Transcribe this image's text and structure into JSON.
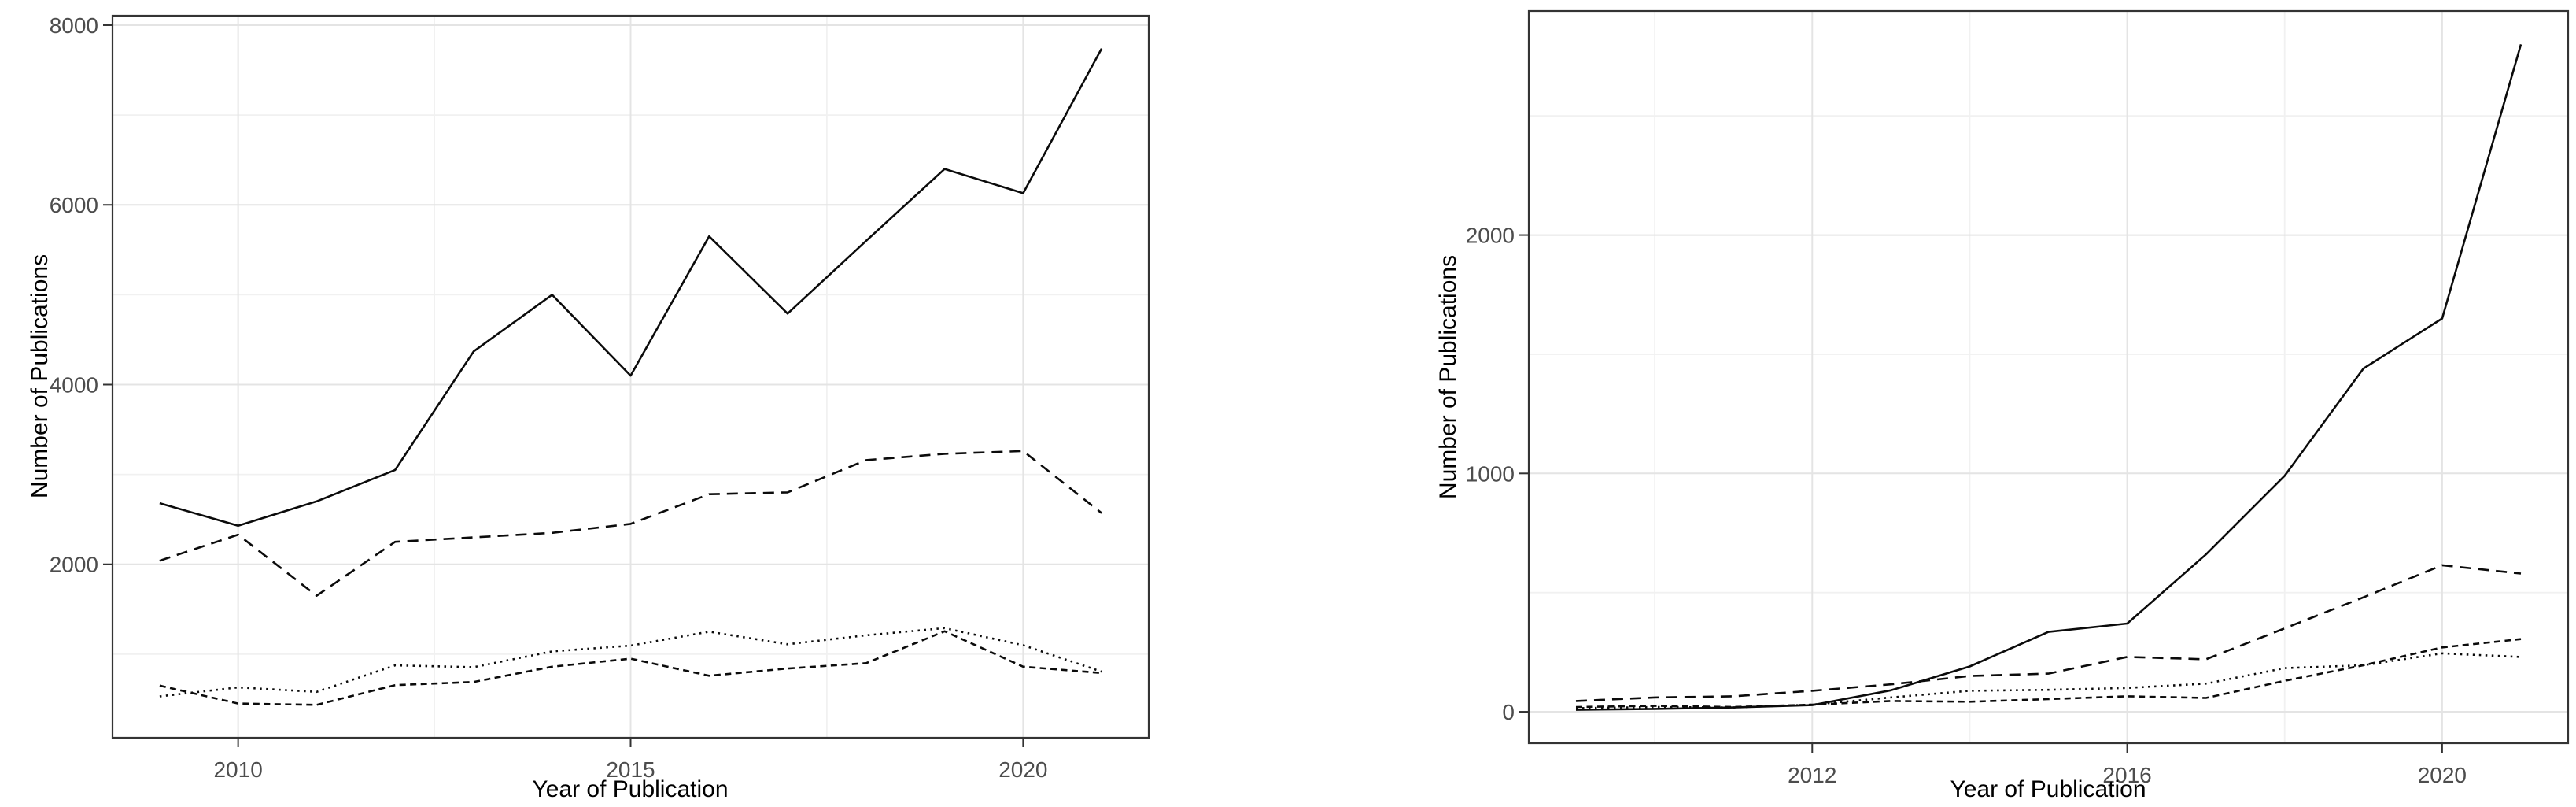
{
  "page": {
    "background": "#ffffff",
    "text_color": "#000000",
    "tick_label_color": "#4d4d4d",
    "line_color": "#0b0b0b",
    "grid_major_color": "#e4e4e4",
    "grid_minor_color": "#f1f1f1",
    "panel_border_color": "#343434"
  },
  "chart_data": [
    {
      "id": "left",
      "type": "line",
      "title": "",
      "xlabel": "Year of Publication",
      "ylabel": "Number of Publications",
      "legend": "none",
      "grid": true,
      "x": [
        2009,
        2010,
        2011,
        2012,
        2013,
        2014,
        2015,
        2016,
        2017,
        2018,
        2019,
        2020,
        2021
      ],
      "series": [
        {
          "name": "solid-line",
          "linetype": "solid",
          "values": [
            2680,
            2430,
            2700,
            3050,
            4370,
            5000,
            4100,
            5650,
            4790,
            5600,
            6400,
            6130,
            7740
          ]
        },
        {
          "name": "long-dash-line",
          "linetype": "dashed",
          "values": [
            2040,
            2330,
            1650,
            2250,
            2300,
            2350,
            2450,
            2780,
            2800,
            3160,
            3230,
            3260,
            2570
          ]
        },
        {
          "name": "dotted-line",
          "linetype": "dotted",
          "values": [
            530,
            630,
            580,
            875,
            855,
            1030,
            1095,
            1250,
            1110,
            1210,
            1290,
            1100,
            805
          ]
        },
        {
          "name": "short-dash-line",
          "linetype": "twodash",
          "values": [
            650,
            450,
            435,
            655,
            690,
            860,
            950,
            760,
            840,
            900,
            1255,
            860,
            790
          ]
        }
      ],
      "x_breaks": [
        2010,
        2015,
        2020
      ],
      "x_break_labels": [
        "2010",
        "2015",
        "2020"
      ],
      "x_minor_breaks": [
        2012.5,
        2017.5
      ],
      "y_breaks": [
        2000,
        4000,
        6000,
        8000
      ],
      "y_break_labels": [
        "2000",
        "4000",
        "6000",
        "8000"
      ],
      "y_minor_breaks": [
        1000,
        3000,
        5000,
        7000
      ],
      "xlim": [
        2008.4,
        2021.6
      ],
      "ylim": [
        70,
        8105
      ]
    },
    {
      "id": "right",
      "type": "line",
      "title": "",
      "xlabel": "Year of Publication",
      "ylabel": "Number of Publications",
      "legend": "none",
      "grid": true,
      "x": [
        2009,
        2010,
        2011,
        2012,
        2013,
        2014,
        2015,
        2016,
        2017,
        2018,
        2019,
        2020,
        2021
      ],
      "series": [
        {
          "name": "solid-line",
          "linetype": "solid",
          "values": [
            8,
            12,
            18,
            28,
            90,
            190,
            335,
            370,
            660,
            990,
            1440,
            1650,
            2800
          ]
        },
        {
          "name": "long-dash-line",
          "linetype": "dashed",
          "values": [
            45,
            60,
            65,
            88,
            115,
            150,
            160,
            230,
            220,
            350,
            480,
            615,
            580
          ]
        },
        {
          "name": "dotted-line",
          "linetype": "dotted",
          "values": [
            15,
            20,
            18,
            30,
            60,
            88,
            92,
            100,
            118,
            183,
            195,
            245,
            230
          ]
        },
        {
          "name": "short-dash-line",
          "linetype": "twodash",
          "values": [
            20,
            25,
            20,
            30,
            45,
            42,
            53,
            65,
            58,
            130,
            195,
            270,
            305
          ]
        }
      ],
      "x_breaks": [
        2012,
        2016,
        2020
      ],
      "x_break_labels": [
        "2012",
        "2016",
        "2020"
      ],
      "x_minor_breaks": [
        2010,
        2014,
        2018
      ],
      "y_breaks": [
        0,
        1000,
        2000
      ],
      "y_break_labels": [
        "0",
        "1000",
        "2000"
      ],
      "y_minor_breaks": [
        500,
        1500,
        2500
      ],
      "xlim": [
        2008.4,
        2021.6
      ],
      "ylim": [
        -132,
        2940
      ]
    }
  ]
}
